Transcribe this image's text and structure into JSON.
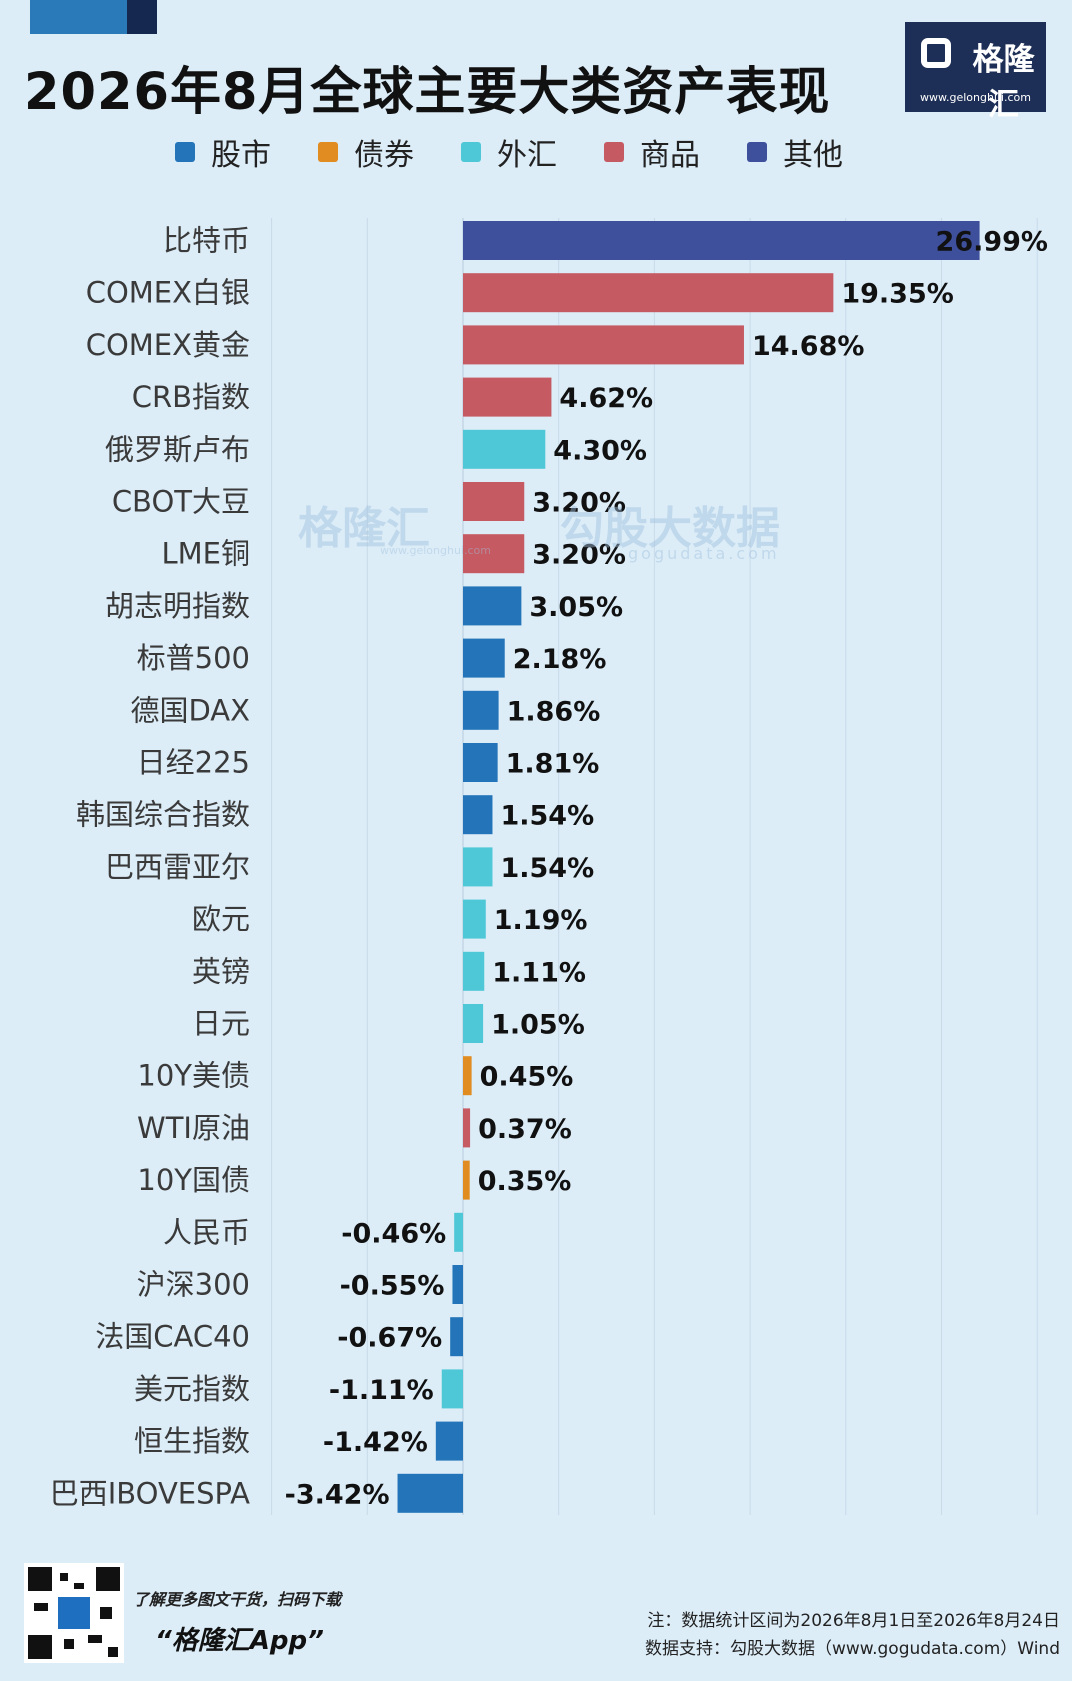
{
  "header": {
    "title": "2026年8月全球主要大类资产表现",
    "logo_brand": "格隆汇",
    "logo_url": "www.gelonghui.com"
  },
  "legend": [
    {
      "label": "股市",
      "color": "#2374b8"
    },
    {
      "label": "债券",
      "color": "#e08c21"
    },
    {
      "label": "外汇",
      "color": "#4ec7d6"
    },
    {
      "label": "商品",
      "color": "#c65a63"
    },
    {
      "label": "其他",
      "color": "#3e4f9b"
    }
  ],
  "watermark": {
    "brand": "格隆汇",
    "brand_url": "www.gelonghui.com",
    "data_brand": "勾股大数据",
    "data_url": "gogudata.com"
  },
  "chart_data": {
    "type": "bar",
    "orientation": "horizontal",
    "title": "2026年8月全球主要大类资产表现",
    "xlim": [
      -10,
      30
    ],
    "grid": true,
    "legend_position": "top",
    "categories": [
      "比特币",
      "COMEX白银",
      "COMEX黄金",
      "CRB指数",
      "俄罗斯卢布",
      "CBOT大豆",
      "LME铜",
      "胡志明指数",
      "标普500",
      "德国DAX",
      "日经225",
      "韩国综合指数",
      "巴西雷亚尔",
      "欧元",
      "英镑",
      "日元",
      "10Y美债",
      "WTI原油",
      "10Y国债",
      "人民币",
      "沪深300",
      "法国CAC40",
      "美元指数",
      "恒生指数",
      "巴西IBOVESPA"
    ],
    "values": [
      26.99,
      19.35,
      14.68,
      4.62,
      4.3,
      3.2,
      3.2,
      3.05,
      2.18,
      1.86,
      1.81,
      1.54,
      1.54,
      1.19,
      1.11,
      1.05,
      0.45,
      0.37,
      0.35,
      -0.46,
      -0.55,
      -0.67,
      -1.11,
      -1.42,
      -3.42
    ],
    "value_labels": [
      "26.99%",
      "19.35%",
      "14.68%",
      "4.62%",
      "4.30%",
      "3.20%",
      "3.20%",
      "3.05%",
      "2.18%",
      "1.86%",
      "1.81%",
      "1.54%",
      "1.54%",
      "1.19%",
      "1.11%",
      "1.05%",
      "0.45%",
      "0.37%",
      "0.35%",
      "-0.46%",
      "-0.55%",
      "-0.67%",
      "-1.11%",
      "-1.42%",
      "-3.42%"
    ],
    "asset_classes": [
      "其他",
      "商品",
      "商品",
      "商品",
      "外汇",
      "商品",
      "商品",
      "股市",
      "股市",
      "股市",
      "股市",
      "股市",
      "外汇",
      "外汇",
      "外汇",
      "外汇",
      "债券",
      "商品",
      "债券",
      "外汇",
      "股市",
      "股市",
      "外汇",
      "股市",
      "股市"
    ]
  },
  "footer": {
    "promo": "了解更多图文干货，扫码下载",
    "app": "“格隆汇App”",
    "note": "注：数据统计区间为2026年8月1日至2026年8月24日",
    "source": "数据支持：勾股大数据（www.gogudata.com）Wind"
  }
}
